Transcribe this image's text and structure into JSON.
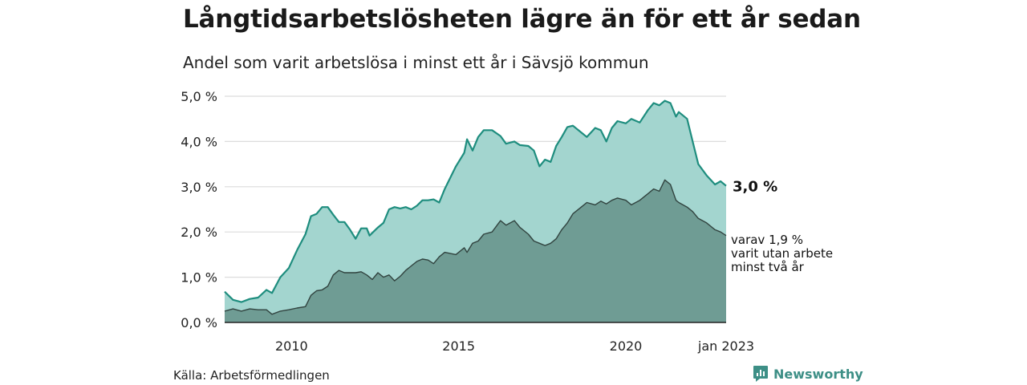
{
  "title": "Långtidsarbetslösheten lägre än för ett år sedan",
  "subtitle": "Andel som varit arbetslösa i minst ett år i Sävsjö kommun",
  "source": "Källa: Arbetsförmedlingen",
  "brand": {
    "name": "Newsworthy",
    "icon": "newsworthy-logo-icon",
    "color": "#3d8f86"
  },
  "chart_data": {
    "type": "area",
    "x_range": [
      "2008-01",
      "2023-01"
    ],
    "ylim": [
      0,
      5
    ],
    "y_ticks": [
      "0,0 %",
      "1,0 %",
      "2,0 %",
      "3,0 %",
      "4,0 %",
      "5,0 %"
    ],
    "x_ticks": [
      {
        "label": "2010",
        "year": 2010
      },
      {
        "label": "2015",
        "year": 2015
      },
      {
        "label": "2020",
        "year": 2020
      },
      {
        "label": "jan 2023",
        "year": 2023
      }
    ],
    "grid": true,
    "series": [
      {
        "id": "one-year",
        "color_fill": "#a3d5cf",
        "color_line": "#1e8d7e",
        "points": [
          [
            "2008-01",
            0.68
          ],
          [
            "2008-04",
            0.5
          ],
          [
            "2008-07",
            0.45
          ],
          [
            "2008-10",
            0.52
          ],
          [
            "2009-01",
            0.55
          ],
          [
            "2009-04",
            0.72
          ],
          [
            "2009-06",
            0.65
          ],
          [
            "2009-09",
            1.0
          ],
          [
            "2009-12",
            1.2
          ],
          [
            "2010-03",
            1.6
          ],
          [
            "2010-06",
            1.95
          ],
          [
            "2010-08",
            2.35
          ],
          [
            "2010-10",
            2.4
          ],
          [
            "2010-12",
            2.55
          ],
          [
            "2011-02",
            2.55
          ],
          [
            "2011-04",
            2.38
          ],
          [
            "2011-06",
            2.22
          ],
          [
            "2011-08",
            2.22
          ],
          [
            "2011-10",
            2.05
          ],
          [
            "2011-12",
            1.85
          ],
          [
            "2012-02",
            2.08
          ],
          [
            "2012-04",
            2.08
          ],
          [
            "2012-05",
            1.92
          ],
          [
            "2012-08",
            2.1
          ],
          [
            "2012-10",
            2.2
          ],
          [
            "2012-12",
            2.5
          ],
          [
            "2013-02",
            2.55
          ],
          [
            "2013-04",
            2.52
          ],
          [
            "2013-06",
            2.55
          ],
          [
            "2013-08",
            2.5
          ],
          [
            "2013-10",
            2.58
          ],
          [
            "2013-12",
            2.7
          ],
          [
            "2014-02",
            2.7
          ],
          [
            "2014-04",
            2.72
          ],
          [
            "2014-06",
            2.65
          ],
          [
            "2014-08",
            2.95
          ],
          [
            "2014-12",
            3.45
          ],
          [
            "2015-03",
            3.75
          ],
          [
            "2015-04",
            4.05
          ],
          [
            "2015-06",
            3.8
          ],
          [
            "2015-08",
            4.1
          ],
          [
            "2015-10",
            4.25
          ],
          [
            "2016-01",
            4.25
          ],
          [
            "2016-04",
            4.12
          ],
          [
            "2016-06",
            3.95
          ],
          [
            "2016-09",
            4.0
          ],
          [
            "2016-11",
            3.92
          ],
          [
            "2017-02",
            3.9
          ],
          [
            "2017-04",
            3.8
          ],
          [
            "2017-06",
            3.45
          ],
          [
            "2017-08",
            3.6
          ],
          [
            "2017-10",
            3.55
          ],
          [
            "2017-12",
            3.9
          ],
          [
            "2018-02",
            4.1
          ],
          [
            "2018-04",
            4.32
          ],
          [
            "2018-06",
            4.35
          ],
          [
            "2018-09",
            4.2
          ],
          [
            "2018-11",
            4.1
          ],
          [
            "2019-02",
            4.3
          ],
          [
            "2019-04",
            4.25
          ],
          [
            "2019-06",
            4.0
          ],
          [
            "2019-08",
            4.3
          ],
          [
            "2019-10",
            4.45
          ],
          [
            "2020-01",
            4.4
          ],
          [
            "2020-03",
            4.5
          ],
          [
            "2020-06",
            4.42
          ],
          [
            "2020-09",
            4.7
          ],
          [
            "2020-11",
            4.85
          ],
          [
            "2021-01",
            4.8
          ],
          [
            "2021-03",
            4.9
          ],
          [
            "2021-05",
            4.85
          ],
          [
            "2021-07",
            4.55
          ],
          [
            "2021-08",
            4.65
          ],
          [
            "2021-11",
            4.5
          ],
          [
            "2022-01",
            4.0
          ],
          [
            "2022-03",
            3.5
          ],
          [
            "2022-06",
            3.25
          ],
          [
            "2022-09",
            3.05
          ],
          [
            "2022-11",
            3.12
          ],
          [
            "2023-01",
            3.02
          ]
        ],
        "end_label": "3,0 %"
      },
      {
        "id": "two-year",
        "color_fill": "#6f9c94",
        "color_line": "#31433f",
        "points": [
          [
            "2008-01",
            0.25
          ],
          [
            "2008-04",
            0.3
          ],
          [
            "2008-07",
            0.25
          ],
          [
            "2008-10",
            0.3
          ],
          [
            "2009-01",
            0.28
          ],
          [
            "2009-04",
            0.28
          ],
          [
            "2009-06",
            0.18
          ],
          [
            "2009-09",
            0.25
          ],
          [
            "2009-12",
            0.28
          ],
          [
            "2010-03",
            0.32
          ],
          [
            "2010-06",
            0.35
          ],
          [
            "2010-08",
            0.6
          ],
          [
            "2010-10",
            0.7
          ],
          [
            "2010-12",
            0.72
          ],
          [
            "2011-02",
            0.8
          ],
          [
            "2011-04",
            1.05
          ],
          [
            "2011-06",
            1.15
          ],
          [
            "2011-08",
            1.1
          ],
          [
            "2011-10",
            1.1
          ],
          [
            "2011-12",
            1.1
          ],
          [
            "2012-02",
            1.12
          ],
          [
            "2012-04",
            1.05
          ],
          [
            "2012-06",
            0.95
          ],
          [
            "2012-08",
            1.1
          ],
          [
            "2012-10",
            1.0
          ],
          [
            "2012-12",
            1.05
          ],
          [
            "2013-02",
            0.92
          ],
          [
            "2013-04",
            1.02
          ],
          [
            "2013-06",
            1.15
          ],
          [
            "2013-08",
            1.25
          ],
          [
            "2013-10",
            1.35
          ],
          [
            "2013-12",
            1.4
          ],
          [
            "2014-02",
            1.38
          ],
          [
            "2014-04",
            1.3
          ],
          [
            "2014-06",
            1.45
          ],
          [
            "2014-08",
            1.55
          ],
          [
            "2014-12",
            1.5
          ],
          [
            "2015-03",
            1.65
          ],
          [
            "2015-04",
            1.55
          ],
          [
            "2015-06",
            1.75
          ],
          [
            "2015-08",
            1.8
          ],
          [
            "2015-10",
            1.95
          ],
          [
            "2016-01",
            2.0
          ],
          [
            "2016-04",
            2.25
          ],
          [
            "2016-06",
            2.15
          ],
          [
            "2016-09",
            2.25
          ],
          [
            "2016-11",
            2.1
          ],
          [
            "2017-02",
            1.95
          ],
          [
            "2017-04",
            1.8
          ],
          [
            "2017-06",
            1.75
          ],
          [
            "2017-08",
            1.7
          ],
          [
            "2017-10",
            1.75
          ],
          [
            "2017-12",
            1.85
          ],
          [
            "2018-02",
            2.05
          ],
          [
            "2018-04",
            2.2
          ],
          [
            "2018-06",
            2.4
          ],
          [
            "2018-09",
            2.55
          ],
          [
            "2018-11",
            2.65
          ],
          [
            "2019-02",
            2.6
          ],
          [
            "2019-04",
            2.68
          ],
          [
            "2019-06",
            2.62
          ],
          [
            "2019-08",
            2.7
          ],
          [
            "2019-10",
            2.75
          ],
          [
            "2020-01",
            2.7
          ],
          [
            "2020-03",
            2.6
          ],
          [
            "2020-06",
            2.7
          ],
          [
            "2020-09",
            2.85
          ],
          [
            "2020-11",
            2.95
          ],
          [
            "2021-01",
            2.9
          ],
          [
            "2021-03",
            3.15
          ],
          [
            "2021-05",
            3.05
          ],
          [
            "2021-07",
            2.7
          ],
          [
            "2021-08",
            2.65
          ],
          [
            "2021-11",
            2.55
          ],
          [
            "2022-01",
            2.45
          ],
          [
            "2022-03",
            2.3
          ],
          [
            "2022-06",
            2.2
          ],
          [
            "2022-09",
            2.05
          ],
          [
            "2022-11",
            2.0
          ],
          [
            "2023-01",
            1.92
          ]
        ],
        "end_label_lines": [
          "varav 1,9 %",
          "varit utan arbete",
          "minst två år"
        ]
      }
    ]
  }
}
